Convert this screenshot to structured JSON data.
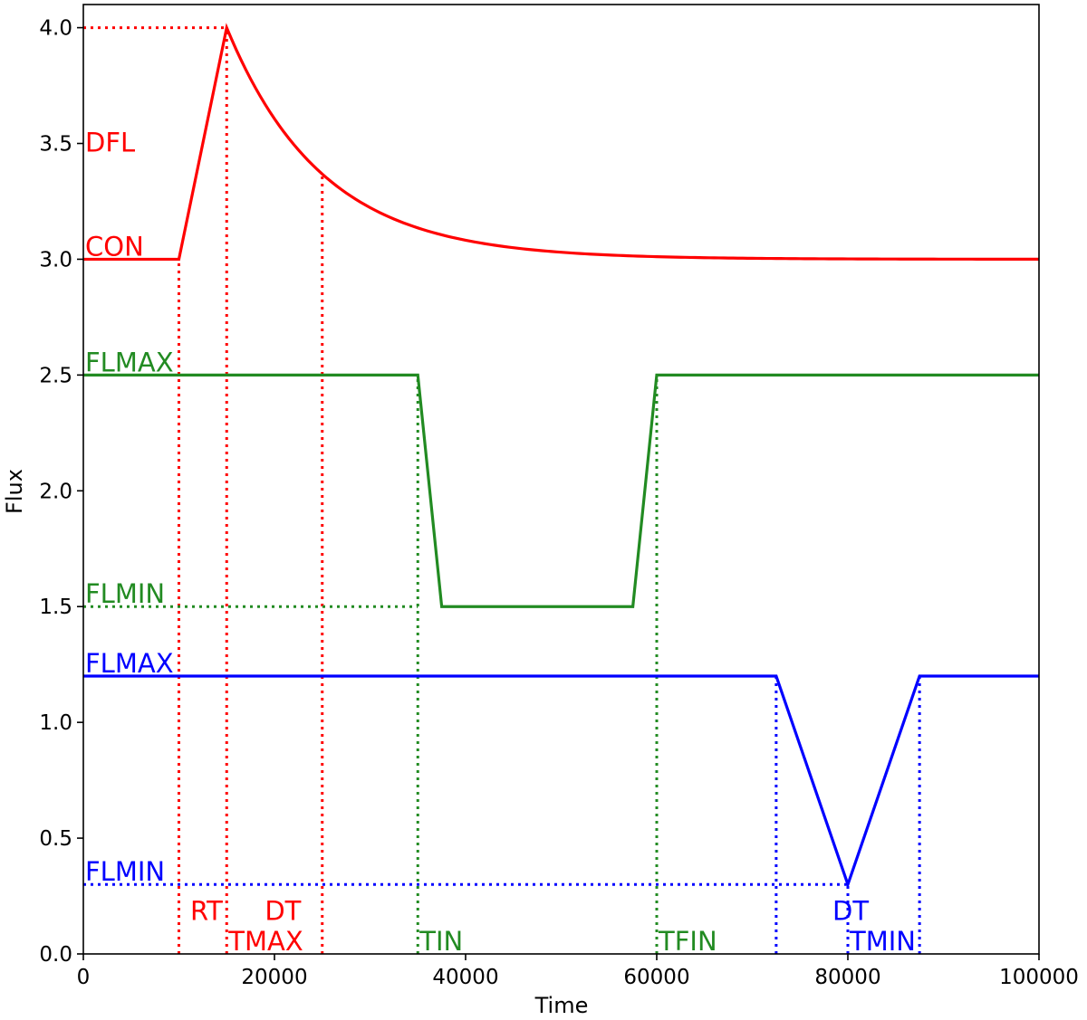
{
  "chart_data": {
    "type": "line",
    "xlabel": "Time",
    "ylabel": "Flux",
    "xlim": [
      0,
      100000
    ],
    "ylim": [
      0,
      4.1
    ],
    "grid": false,
    "legend": "none",
    "x_ticks": [
      0,
      20000,
      40000,
      60000,
      80000,
      100000
    ],
    "x_tick_labels": [
      "0",
      "20000",
      "40000",
      "60000",
      "80000",
      "100000"
    ],
    "y_ticks": [
      0.0,
      0.5,
      1.0,
      1.5,
      2.0,
      2.5,
      3.0,
      3.5,
      4.0
    ],
    "y_tick_labels": [
      "0.0",
      "0.5",
      "1.0",
      "1.5",
      "2.0",
      "2.5",
      "3.0",
      "3.5",
      "4.0"
    ],
    "colors": {
      "flare": "#ff0000",
      "transit": "#228b22",
      "eclipse": "#0000ff"
    },
    "series": [
      {
        "key": "flare",
        "color": "#ff0000",
        "model": "flare",
        "params": {
          "con": 3.0,
          "peak": 4.0,
          "t_start": 10000,
          "t_max": 15000,
          "decay_time": 10000,
          "x_end": 100000
        }
      },
      {
        "key": "transit",
        "color": "#228b22",
        "points": [
          [
            0,
            2.5
          ],
          [
            35000,
            2.5
          ],
          [
            37500,
            1.5
          ],
          [
            57500,
            1.5
          ],
          [
            60000,
            2.5
          ],
          [
            100000,
            2.5
          ]
        ]
      },
      {
        "key": "eclipse",
        "color": "#0000ff",
        "points": [
          [
            0,
            1.2
          ],
          [
            72500,
            1.2
          ],
          [
            80000,
            0.3
          ],
          [
            87500,
            1.2
          ],
          [
            100000,
            1.2
          ]
        ]
      }
    ],
    "guides": [
      {
        "color": "#ff0000",
        "from": [
          0,
          4.0
        ],
        "to": [
          15000,
          4.0
        ]
      },
      {
        "color": "#ff0000",
        "from": [
          10000,
          0
        ],
        "to": [
          10000,
          3.0
        ]
      },
      {
        "color": "#ff0000",
        "from": [
          15000,
          0
        ],
        "to": [
          15000,
          4.0
        ]
      },
      {
        "color": "#ff0000",
        "from": [
          25000,
          0
        ],
        "to": [
          25000,
          3.37
        ]
      },
      {
        "color": "#228b22",
        "from": [
          0,
          1.5
        ],
        "to": [
          35000,
          1.5
        ]
      },
      {
        "color": "#228b22",
        "from": [
          35000,
          0
        ],
        "to": [
          35000,
          2.5
        ]
      },
      {
        "color": "#228b22",
        "from": [
          60000,
          0
        ],
        "to": [
          60000,
          2.5
        ]
      },
      {
        "color": "#0000ff",
        "from": [
          0,
          0.3
        ],
        "to": [
          80000,
          0.3
        ]
      },
      {
        "color": "#0000ff",
        "from": [
          72500,
          0
        ],
        "to": [
          72500,
          1.2
        ]
      },
      {
        "color": "#0000ff",
        "from": [
          80000,
          0
        ],
        "to": [
          80000,
          0.3
        ]
      },
      {
        "color": "#0000ff",
        "from": [
          87500,
          0
        ],
        "to": [
          87500,
          1.2
        ]
      }
    ],
    "annotations": [
      {
        "text": "DFL",
        "x": 0,
        "y": 3.45,
        "color": "#ff0000"
      },
      {
        "text": "CON",
        "x": 0,
        "y": 3.0,
        "color": "#ff0000"
      },
      {
        "text": "FLMAX",
        "x": 0,
        "y": 2.5,
        "color": "#228b22"
      },
      {
        "text": "FLMIN",
        "x": 0,
        "y": 1.5,
        "color": "#228b22"
      },
      {
        "text": "FLMAX",
        "x": 0,
        "y": 1.2,
        "color": "#0000ff"
      },
      {
        "text": "FLMIN",
        "x": 0,
        "y": 0.3,
        "color": "#0000ff"
      },
      {
        "text": "RT",
        "x": 11000,
        "y": 0.13,
        "color": "#ff0000"
      },
      {
        "text": "DT",
        "x": 18800,
        "y": 0.13,
        "color": "#ff0000"
      },
      {
        "text": "TMAX",
        "x": 15000,
        "y": 0.0,
        "color": "#ff0000"
      },
      {
        "text": "TIN",
        "x": 35000,
        "y": 0.0,
        "color": "#228b22"
      },
      {
        "text": "TFIN",
        "x": 60000,
        "y": 0.0,
        "color": "#228b22"
      },
      {
        "text": "DT",
        "x": 78200,
        "y": 0.13,
        "color": "#0000ff"
      },
      {
        "text": "TMIN",
        "x": 80000,
        "y": 0.0,
        "color": "#0000ff"
      }
    ]
  }
}
